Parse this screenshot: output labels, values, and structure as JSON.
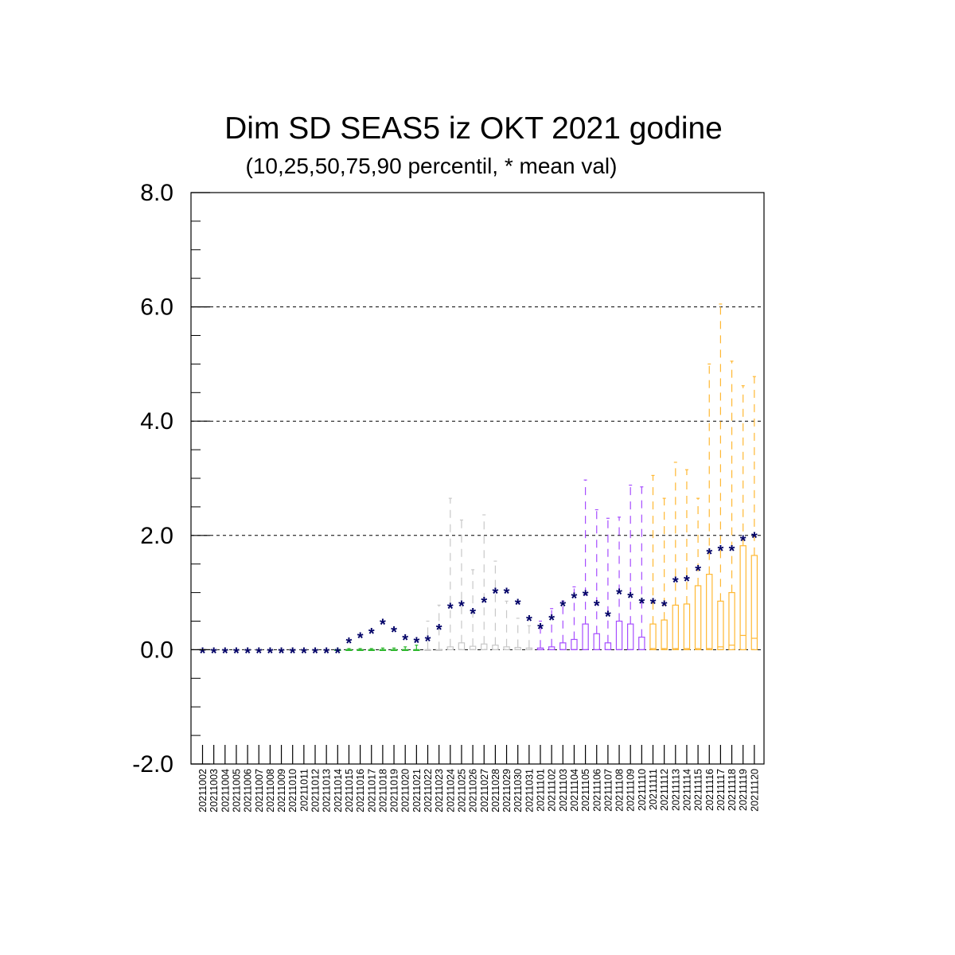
{
  "chart_data": {
    "type": "box",
    "title": "Dim SD SEAS5 iz OKT 2021 godine",
    "subtitle": "(10,25,50,75,90 percentil, * mean val)",
    "ylim": [
      -2.0,
      8.0
    ],
    "yticks": [
      -2.0,
      0.0,
      2.0,
      4.0,
      6.0,
      8.0
    ],
    "ytick_labels": [
      "-2.0",
      "0.0",
      "2.0",
      "4.0",
      "6.0",
      "8.0"
    ],
    "grid": "dashed horizontal at major ticks",
    "mean_marker": "*",
    "colors": {
      "green": "#2eb82e",
      "gray": "#c8c8c8",
      "purple": "#a64dff",
      "orange": "#ffb833",
      "mean": "#000066",
      "frame": "#000000"
    },
    "categories": [
      "20211002",
      "20211003",
      "20211004",
      "20211005",
      "20211006",
      "20211007",
      "20211008",
      "20211009",
      "20211010",
      "20211011",
      "20211012",
      "20211013",
      "20211014",
      "20211015",
      "20211016",
      "20211017",
      "20211018",
      "20211019",
      "20211020",
      "20211021",
      "20211022",
      "20211023",
      "20211024",
      "20211025",
      "20211026",
      "20211027",
      "20211028",
      "20211029",
      "20211030",
      "20211031",
      "20211101",
      "20211102",
      "20211103",
      "20211104",
      "20211105",
      "20211106",
      "20211107",
      "20211108",
      "20211109",
      "20211110",
      "20211111",
      "20211112",
      "20211113",
      "20211114",
      "20211115",
      "20211116",
      "20211117",
      "20211118",
      "20211119",
      "20211120"
    ],
    "p10": [
      0,
      0,
      0,
      0,
      0,
      0,
      0,
      0,
      0,
      0,
      0,
      0,
      0,
      0,
      0,
      0,
      0,
      0,
      0,
      0,
      0,
      0,
      0,
      0,
      0,
      0,
      0,
      0,
      0,
      0,
      0,
      0,
      0,
      0,
      0,
      0,
      0,
      0,
      0,
      0,
      0,
      0,
      0,
      0,
      0,
      0,
      0,
      0,
      0,
      0
    ],
    "p25": [
      0,
      0,
      0,
      0,
      0,
      0,
      0,
      0,
      0,
      0,
      0,
      0,
      0,
      0,
      0,
      0,
      0,
      0,
      0,
      0,
      0,
      0,
      0,
      0,
      0,
      0,
      0,
      0,
      0,
      0,
      0,
      0,
      0,
      0,
      0,
      0,
      0,
      0,
      0,
      0,
      0,
      0,
      0,
      0,
      0,
      0,
      0,
      0,
      0,
      0
    ],
    "p50": [
      0,
      0,
      0,
      0,
      0,
      0,
      0,
      0,
      0,
      0,
      0,
      0,
      0,
      0,
      0,
      0,
      0,
      0,
      0,
      0,
      0,
      0,
      0,
      0,
      0,
      0,
      0,
      0,
      0,
      0,
      0,
      0,
      0,
      0,
      0,
      0,
      0,
      0,
      0,
      0,
      0.02,
      0.02,
      0.02,
      0.02,
      0.02,
      0.02,
      0.05,
      0.08,
      0.25,
      0.2
    ],
    "p75": [
      0,
      0,
      0,
      0,
      0,
      0,
      0,
      0,
      0,
      0,
      0,
      0,
      0,
      0,
      0,
      0,
      0,
      0,
      0,
      0,
      0,
      0,
      0.05,
      0.12,
      0.06,
      0.1,
      0.08,
      0.05,
      0.04,
      0.03,
      0.03,
      0.05,
      0.12,
      0.18,
      0.45,
      0.28,
      0.12,
      0.5,
      0.45,
      0.22,
      0.45,
      0.52,
      0.78,
      0.8,
      1.12,
      1.32,
      0.85,
      1.0,
      1.82,
      1.65
    ],
    "p90": [
      0,
      0,
      0,
      0,
      0,
      0,
      0,
      0,
      0,
      0,
      0,
      0,
      0,
      0.02,
      0.02,
      0.02,
      0.03,
      0.03,
      0.05,
      0.08,
      0.5,
      0.78,
      2.65,
      2.27,
      1.4,
      2.36,
      1.55,
      0.85,
      0.55,
      0.42,
      0.5,
      0.72,
      0.85,
      1.1,
      2.97,
      2.45,
      2.3,
      2.32,
      2.88,
      2.85,
      3.05,
      2.65,
      3.28,
      3.15,
      2.65,
      5.0,
      6.05,
      5.05,
      4.62,
      4.78
    ],
    "mean": [
      0,
      0,
      0,
      0,
      0,
      0,
      0,
      0,
      0,
      0,
      0,
      0,
      0,
      0.17,
      0.26,
      0.34,
      0.5,
      0.37,
      0.23,
      0.18,
      0.21,
      0.41,
      0.78,
      0.82,
      0.69,
      0.88,
      1.04,
      1.04,
      0.85,
      0.56,
      0.42,
      0.58,
      0.82,
      0.96,
      1.0,
      0.83,
      0.64,
      1.03,
      0.97,
      0.87,
      0.86,
      0.82,
      1.24,
      1.26,
      1.44,
      1.73,
      1.79,
      1.79,
      1.96,
      2.02
    ],
    "color_groups": [
      "gray",
      "gray",
      "gray",
      "gray",
      "gray",
      "gray",
      "gray",
      "gray",
      "gray",
      "gray",
      "gray",
      "gray",
      "green",
      "green",
      "green",
      "green",
      "green",
      "green",
      "green",
      "green",
      "gray",
      "gray",
      "gray",
      "gray",
      "gray",
      "gray",
      "gray",
      "gray",
      "gray",
      "gray",
      "purple",
      "purple",
      "purple",
      "purple",
      "purple",
      "purple",
      "purple",
      "purple",
      "purple",
      "purple",
      "orange",
      "orange",
      "orange",
      "orange",
      "orange",
      "orange",
      "orange",
      "orange",
      "orange",
      "orange"
    ]
  }
}
